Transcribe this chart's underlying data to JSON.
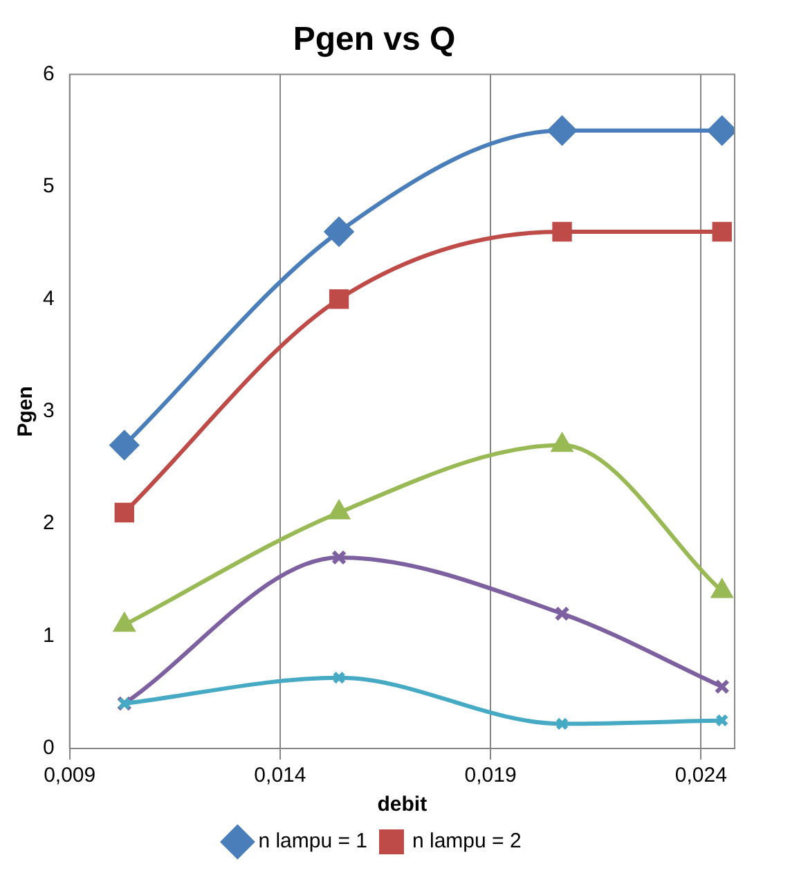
{
  "chart_data": {
    "type": "line",
    "title": "Pgen vs Q",
    "xlabel": "debit",
    "ylabel": "Pgen",
    "x": [
      0.0103,
      0.0154,
      0.0207,
      0.0245
    ],
    "xlim": [
      0.009,
      0.0248
    ],
    "xticks": [
      {
        "value": 0.009,
        "label": "0,009"
      },
      {
        "value": 0.014,
        "label": "0,014"
      },
      {
        "value": 0.019,
        "label": "0,019"
      },
      {
        "value": 0.024,
        "label": "0,024"
      }
    ],
    "ylim": [
      0,
      6
    ],
    "yticks": [
      0,
      1,
      2,
      3,
      4,
      5,
      6
    ],
    "grid": "x",
    "legend": "bottom",
    "series": [
      {
        "name": "n lampu = 1",
        "color": "#4a7ebb",
        "marker": "diamond",
        "values": [
          2.7,
          4.6,
          5.5,
          5.5
        ]
      },
      {
        "name": "n lampu = 2",
        "color": "#be4b48",
        "marker": "square",
        "values": [
          2.1,
          4.0,
          4.6,
          4.6
        ]
      },
      {
        "color": "#98b954",
        "marker": "triangle",
        "values": [
          1.1,
          2.1,
          2.7,
          1.4
        ]
      },
      {
        "color": "#7d60a0",
        "marker": "cross",
        "values": [
          0.4,
          1.7,
          1.2,
          0.55
        ]
      },
      {
        "color": "#46aac5",
        "marker": "cross",
        "values": [
          0.4,
          0.63,
          0.22,
          0.25
        ]
      }
    ]
  }
}
